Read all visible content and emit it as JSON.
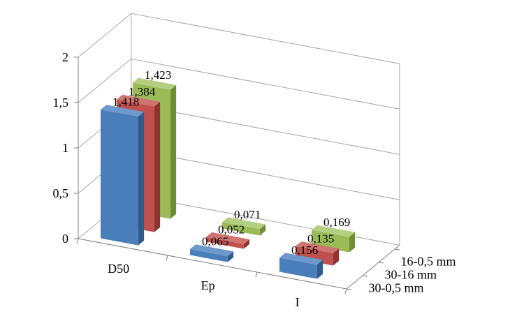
{
  "chart_data": {
    "type": "bar",
    "variant": "3d-column",
    "categories": [
      "D50",
      "Ep",
      "I"
    ],
    "series": [
      {
        "name": "30-0,5 mm",
        "values": [
          1.418,
          0.065,
          0.156
        ],
        "color_front": "#4a7ebb",
        "color_side": "#2f5a8c",
        "color_top": "#6d98cc"
      },
      {
        "name": "30-16 mm",
        "values": [
          1.384,
          0.052,
          0.135
        ],
        "color_front": "#c0504d",
        "color_side": "#8f3331",
        "color_top": "#d07472"
      },
      {
        "name": "16-0,5 mm",
        "values": [
          1.423,
          0.071,
          0.169
        ],
        "color_front": "#9bbb59",
        "color_side": "#6f8c36",
        "color_top": "#b5cf80"
      }
    ],
    "data_labels": [
      [
        "1,418",
        "0,065",
        "0,156"
      ],
      [
        "1,384",
        "0,052",
        "0,135"
      ],
      [
        "1,423",
        "0,071",
        "0,169"
      ]
    ],
    "yticks": [
      {
        "value": 0,
        "label": "0"
      },
      {
        "value": 0.5,
        "label": "0,5"
      },
      {
        "value": 1,
        "label": "1"
      },
      {
        "value": 1.5,
        "label": "1,5"
      },
      {
        "value": 2,
        "label": "2"
      }
    ],
    "ylim": [
      0,
      2
    ],
    "title": "",
    "xlabel": "",
    "ylabel": "",
    "grid": true
  }
}
